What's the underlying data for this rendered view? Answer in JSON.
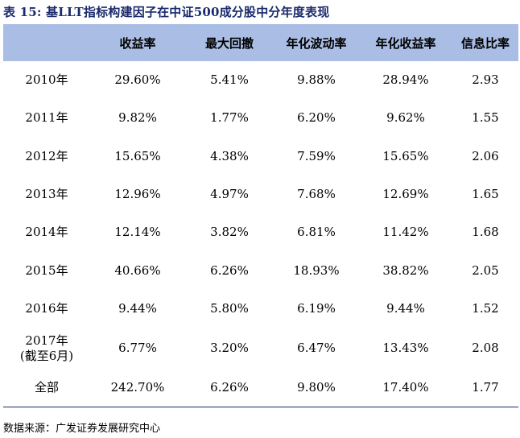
{
  "title": "表 15: 基LLT指标构建因子在中证500成分股中分年度表现",
  "headers": [
    "",
    "收益率",
    "最大回撤",
    "年化波动率",
    "年化收益率",
    "信息比率"
  ],
  "rows": [
    {
      "year": "2010年",
      "year2": "",
      "ret": "29.60%",
      "mdd": "5.41%",
      "vol": "9.88%",
      "ann": "28.94%",
      "ir": "2.93"
    },
    {
      "year": "2011年",
      "year2": "",
      "ret": "9.82%",
      "mdd": "1.77%",
      "vol": "6.20%",
      "ann": "9.62%",
      "ir": "1.55"
    },
    {
      "year": "2012年",
      "year2": "",
      "ret": "15.65%",
      "mdd": "4.38%",
      "vol": "7.59%",
      "ann": "15.65%",
      "ir": "2.06"
    },
    {
      "year": "2013年",
      "year2": "",
      "ret": "12.96%",
      "mdd": "4.97%",
      "vol": "7.68%",
      "ann": "12.69%",
      "ir": "1.65"
    },
    {
      "year": "2014年",
      "year2": "",
      "ret": "12.14%",
      "mdd": "3.82%",
      "vol": "6.81%",
      "ann": "11.42%",
      "ir": "1.68"
    },
    {
      "year": "2015年",
      "year2": "",
      "ret": "40.66%",
      "mdd": "6.26%",
      "vol": "18.93%",
      "ann": "38.82%",
      "ir": "2.05"
    },
    {
      "year": "2016年",
      "year2": "",
      "ret": "9.44%",
      "mdd": "5.80%",
      "vol": "6.19%",
      "ann": "9.44%",
      "ir": "1.52"
    },
    {
      "year": "2017年",
      "year2": "(截至6月)",
      "ret": "6.77%",
      "mdd": "3.20%",
      "vol": "6.47%",
      "ann": "13.43%",
      "ir": "2.08"
    },
    {
      "year": "全部",
      "year2": "",
      "ret": "242.70%",
      "mdd": "6.26%",
      "vol": "9.80%",
      "ann": "17.40%",
      "ir": "1.77"
    }
  ],
  "source": "数据来源：广发证券发展研究中心"
}
